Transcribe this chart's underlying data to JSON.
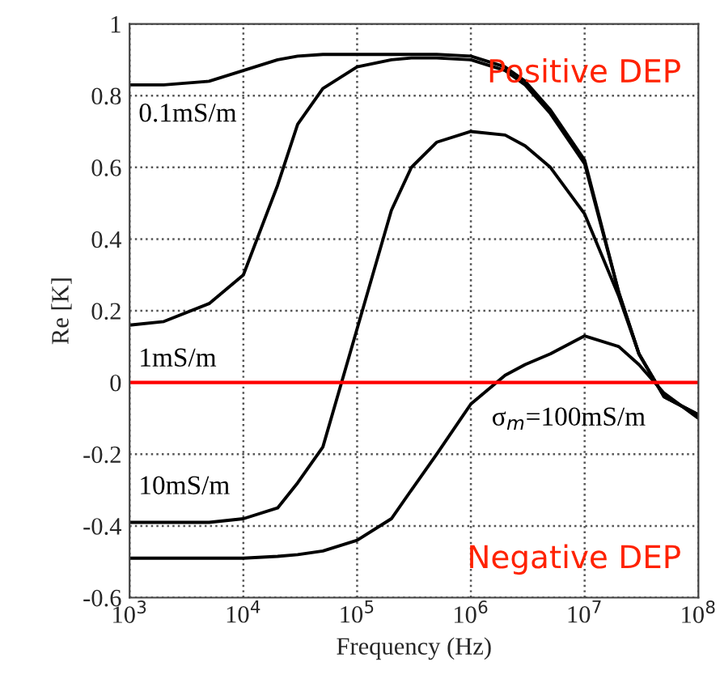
{
  "chart_data": {
    "type": "line",
    "xlabel": "Frequency (Hz)",
    "ylabel": "Re [K]",
    "log": "x",
    "x": [
      1000,
      2000,
      5000,
      10000,
      20000,
      30000,
      50000,
      100000,
      200000,
      300000,
      500000,
      1000000,
      2000000,
      3000000,
      5000000,
      10000000,
      20000000,
      30000000,
      50000000,
      100000000
    ],
    "series": [
      {
        "name": "0.1mS/m",
        "color": "#000000",
        "values": [
          0.83,
          0.83,
          0.84,
          0.87,
          0.9,
          0.91,
          0.915,
          0.915,
          0.915,
          0.915,
          0.915,
          0.91,
          0.88,
          0.84,
          0.76,
          0.62,
          0.25,
          0.08,
          -0.04,
          -0.09
        ]
      },
      {
        "name": "1mS/m",
        "color": "#000000",
        "values": [
          0.16,
          0.17,
          0.22,
          0.3,
          0.55,
          0.72,
          0.82,
          0.88,
          0.9,
          0.905,
          0.905,
          0.9,
          0.87,
          0.83,
          0.75,
          0.61,
          0.25,
          0.08,
          -0.04,
          -0.09
        ]
      },
      {
        "name": "10mS/m",
        "color": "#000000",
        "values": [
          -0.39,
          -0.39,
          -0.39,
          -0.38,
          -0.35,
          -0.28,
          -0.18,
          0.15,
          0.48,
          0.6,
          0.67,
          0.7,
          0.69,
          0.66,
          0.6,
          0.47,
          0.24,
          0.08,
          -0.04,
          -0.09
        ]
      },
      {
        "name": "σ$_{m}$=100mS/m",
        "color": "#000000",
        "values": [
          -0.49,
          -0.49,
          -0.49,
          -0.49,
          -0.485,
          -0.48,
          -0.47,
          -0.44,
          -0.38,
          -0.3,
          -0.2,
          -0.06,
          0.02,
          0.05,
          0.08,
          0.13,
          0.1,
          0.05,
          -0.03,
          -0.1
        ]
      }
    ],
    "xlim": [
      1000,
      100000000
    ],
    "xticks": [
      {
        "value": 1000,
        "label": "10$^{3}$"
      },
      {
        "value": 10000,
        "label": "10$^{4}$"
      },
      {
        "value": 100000,
        "label": "10$^{5}$"
      },
      {
        "value": 1000000,
        "label": "10$^{6}$"
      },
      {
        "value": 10000000,
        "label": "10$^{7}$"
      },
      {
        "value": 100000000,
        "label": "10$^{8}$"
      }
    ],
    "ylim": [
      -0.6,
      1
    ],
    "yticks": [
      -0.6,
      -0.4,
      -0.2,
      0,
      0.2,
      0.4,
      0.6,
      0.8,
      1
    ],
    "grid": true,
    "line_style": "solid",
    "marker": "none",
    "ref_lines": [
      {
        "axis": "y",
        "value": 0,
        "color": "#ff0000"
      }
    ],
    "annotations": [
      "Positive DEP",
      "Negative DEP"
    ]
  }
}
